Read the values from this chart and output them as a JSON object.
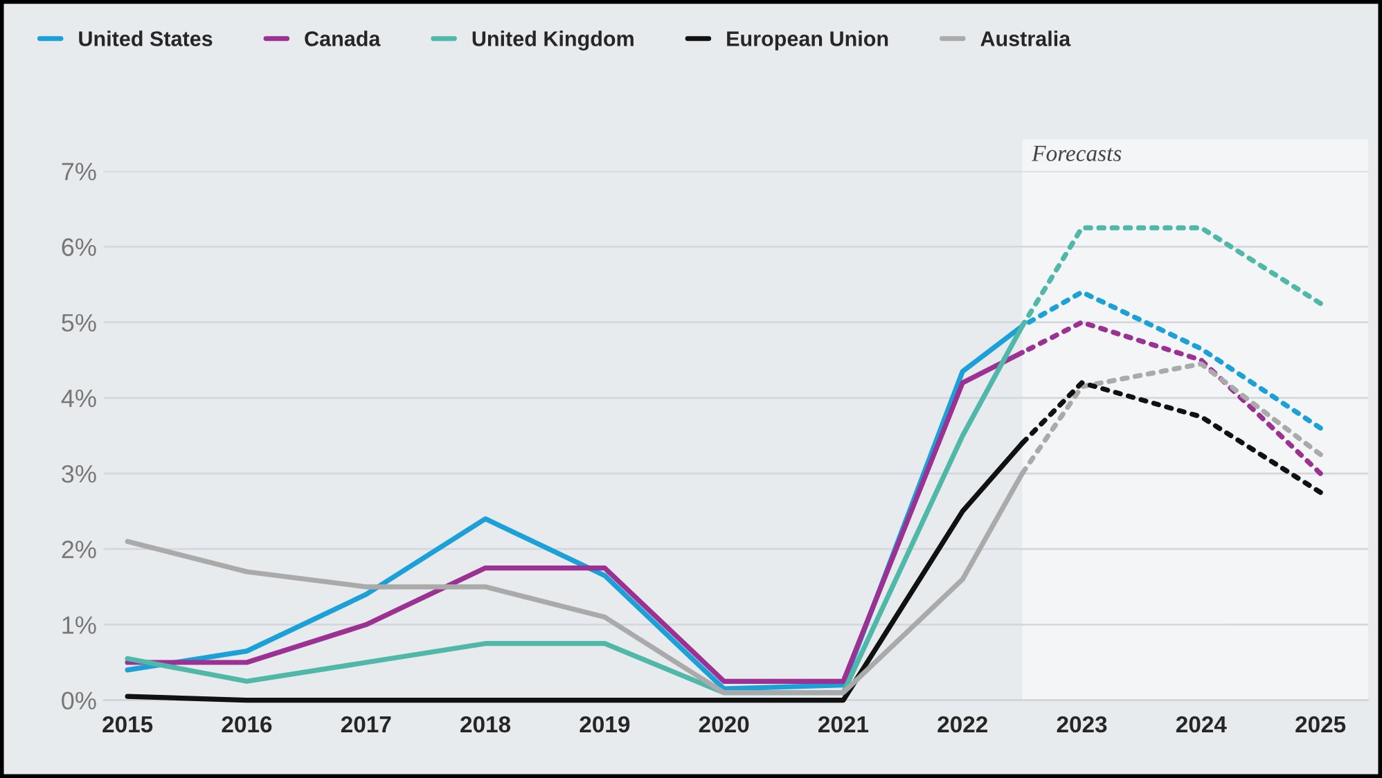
{
  "chart_data": {
    "type": "line",
    "x": [
      2015,
      2016,
      2017,
      2018,
      2019,
      2020,
      2021,
      2022,
      2022.5
    ],
    "series": [
      {
        "name": "United States",
        "color": "#1ba1d8",
        "line_style": "solid",
        "values": [
          0.4,
          0.65,
          1.4,
          2.4,
          1.65,
          0.15,
          0.2,
          4.35,
          4.95
        ]
      },
      {
        "name": "Canada",
        "color": "#9b3192",
        "line_style": "solid",
        "values": [
          0.5,
          0.5,
          1.0,
          1.75,
          1.75,
          0.25,
          0.25,
          4.2,
          4.6
        ]
      },
      {
        "name": "United Kingdom",
        "color": "#4fb8a8",
        "line_style": "solid",
        "values": [
          0.55,
          0.25,
          0.5,
          0.75,
          0.75,
          0.1,
          0.1,
          3.5,
          4.95
        ]
      },
      {
        "name": "European Union",
        "color": "#111111",
        "line_style": "solid",
        "values": [
          0.05,
          0.0,
          0.0,
          0.0,
          0.0,
          0.0,
          0.0,
          2.5,
          3.4
        ]
      },
      {
        "name": "Australia",
        "color": "#aaaaaa",
        "line_style": "solid",
        "values": [
          2.1,
          1.7,
          1.5,
          1.5,
          1.1,
          0.1,
          0.1,
          1.6,
          3.0
        ]
      },
      {
        "color": "#1ba1d8",
        "line_style": "dotted",
        "x": [
          2022.5,
          2023,
          2024,
          2025
        ],
        "values": [
          4.95,
          5.4,
          4.65,
          3.6
        ]
      },
      {
        "color": "#9b3192",
        "line_style": "dotted",
        "x": [
          2022.5,
          2023,
          2024,
          2025
        ],
        "values": [
          4.6,
          5.0,
          4.5,
          3.0
        ]
      },
      {
        "color": "#4fb8a8",
        "line_style": "dotted",
        "x": [
          2022.5,
          2023,
          2024,
          2025
        ],
        "values": [
          4.95,
          6.25,
          6.25,
          5.25
        ]
      },
      {
        "color": "#aaaaaa",
        "line_style": "dotted",
        "x": [
          2022.5,
          2023,
          2024,
          2025
        ],
        "values": [
          3.0,
          4.15,
          4.45,
          3.25
        ]
      },
      {
        "color": "#111111",
        "line_style": "dotted",
        "x": [
          2022.5,
          2023,
          2024,
          2025
        ],
        "values": [
          3.4,
          4.2,
          3.75,
          2.75
        ]
      }
    ],
    "bands": [
      {
        "axis": "x",
        "from": 2022.5,
        "to": 2025.4,
        "label": "Forecasts",
        "color": "#f3f5f7"
      }
    ],
    "xlim": [
      2014.8,
      2025.4
    ],
    "xticks": [
      2015,
      2016,
      2017,
      2018,
      2019,
      2020,
      2021,
      2022,
      2023,
      2024,
      2025
    ],
    "ylim": [
      0,
      7
    ],
    "yticks": [
      {
        "value": 0,
        "label": "0%"
      },
      {
        "value": 1,
        "label": "1%"
      },
      {
        "value": 2,
        "label": "2%"
      },
      {
        "value": 3,
        "label": "3%"
      },
      {
        "value": 4,
        "label": "4%"
      },
      {
        "value": 5,
        "label": "5%"
      },
      {
        "value": 6,
        "label": "6%"
      },
      {
        "value": 7,
        "label": "7%"
      }
    ],
    "grid": "y",
    "legend": "top left"
  }
}
